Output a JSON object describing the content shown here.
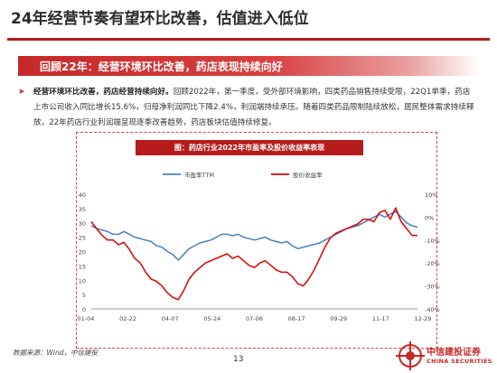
{
  "slide": {
    "title": "24年经营节奏有望环比改善，估值进入低位",
    "section_title": "回顾22年：经营环境环比改善，药店表现持续向好",
    "bullet": {
      "lead": "经营环境环比改善，药店经营持续向好。",
      "text": "回顾2022年，第一季度，受外部环境影响，四类药品销售持续受限，22Q1单季，药店上市公司收入同比增长15.6%，归母净利润同比下降2.4%，利润端持续承压。随着四类药品限制陆续放松，居民整体需求持续释放，22年药店行业利润端呈现逐季改善趋势，药店板块估值持续修复。"
    },
    "source": "数据来源：Wind，中信建投",
    "page_number": "13",
    "logo": {
      "cn": "中信建投证券",
      "en": "CHINA SECURITIES"
    },
    "colors": {
      "accent": "#c62828",
      "pe_line": "#4a7fc1",
      "return_line": "#e00000"
    }
  },
  "chart_data": {
    "type": "line",
    "title": "图：药店行业2022年市盈率及股价收益率表现",
    "x_ticks": [
      "01-04",
      "02-22",
      "04-07",
      "05-24",
      "07-06",
      "08-17",
      "09-29",
      "11-17",
      "12-29"
    ],
    "y_left": {
      "ticks": [
        "0",
        "5",
        "10",
        "15",
        "20",
        "25",
        "30",
        "35",
        "40"
      ],
      "min": 0,
      "max": 40
    },
    "y_right": {
      "ticks": [
        "10%",
        "0%",
        "-10%",
        "-20%",
        "-30%",
        "-40%"
      ],
      "min": -40,
      "max": 10
    },
    "legend_position": "top",
    "series": [
      {
        "name": "市盈率TTM",
        "axis": "left",
        "x": [
          0,
          4,
          8,
          12,
          16,
          20,
          24,
          28,
          32,
          36,
          40,
          44,
          48,
          52,
          56,
          60,
          64,
          68,
          72,
          76,
          80,
          84,
          88,
          92,
          96,
          100,
          104,
          108,
          112,
          116,
          120,
          124,
          128,
          132,
          136,
          140,
          144,
          148,
          152,
          156,
          160,
          164,
          168,
          172,
          176,
          180,
          184,
          188,
          192,
          196,
          200,
          204,
          208,
          212,
          216,
          220,
          224,
          228,
          232,
          236,
          240
        ],
        "values": [
          29,
          28,
          27.5,
          27,
          26,
          26,
          27,
          26,
          25,
          24.5,
          24,
          23.5,
          22,
          21.5,
          20,
          19,
          17,
          19,
          21,
          22,
          23,
          23.5,
          24,
          25,
          26,
          26,
          25.5,
          26,
          25,
          24.5,
          24,
          24.5,
          25,
          24,
          23.5,
          23,
          23.5,
          22,
          21,
          21.5,
          22,
          22.5,
          23,
          24,
          25,
          26,
          27,
          28,
          28.5,
          29,
          30,
          31,
          32,
          33,
          32,
          33,
          34,
          32,
          30,
          29,
          28.5
        ]
      },
      {
        "name": "股价收益率",
        "axis": "right",
        "x": [
          0,
          4,
          8,
          12,
          16,
          20,
          24,
          28,
          32,
          36,
          40,
          44,
          48,
          52,
          56,
          60,
          64,
          68,
          72,
          76,
          80,
          84,
          88,
          92,
          96,
          100,
          104,
          108,
          112,
          116,
          120,
          124,
          128,
          132,
          136,
          140,
          144,
          148,
          152,
          156,
          160,
          164,
          168,
          172,
          176,
          180,
          184,
          188,
          192,
          196,
          200,
          204,
          208,
          212,
          216,
          220,
          224,
          228,
          232,
          236,
          240
        ],
        "values": [
          -2,
          -5,
          -8,
          -10,
          -10,
          -12,
          -11,
          -14,
          -18,
          -20,
          -24,
          -27,
          -28,
          -30,
          -33,
          -35,
          -36,
          -32,
          -27,
          -24,
          -22,
          -20,
          -19,
          -18,
          -17,
          -16,
          -18,
          -17,
          -19,
          -21,
          -22,
          -20,
          -19,
          -21,
          -23,
          -24,
          -24,
          -26,
          -29,
          -30,
          -27,
          -23,
          -18,
          -13,
          -9,
          -7,
          -6,
          -5,
          -4,
          -3,
          -1,
          -1,
          -2,
          2,
          3,
          -1,
          4,
          -2,
          -5,
          -8,
          -8
        ]
      }
    ]
  }
}
